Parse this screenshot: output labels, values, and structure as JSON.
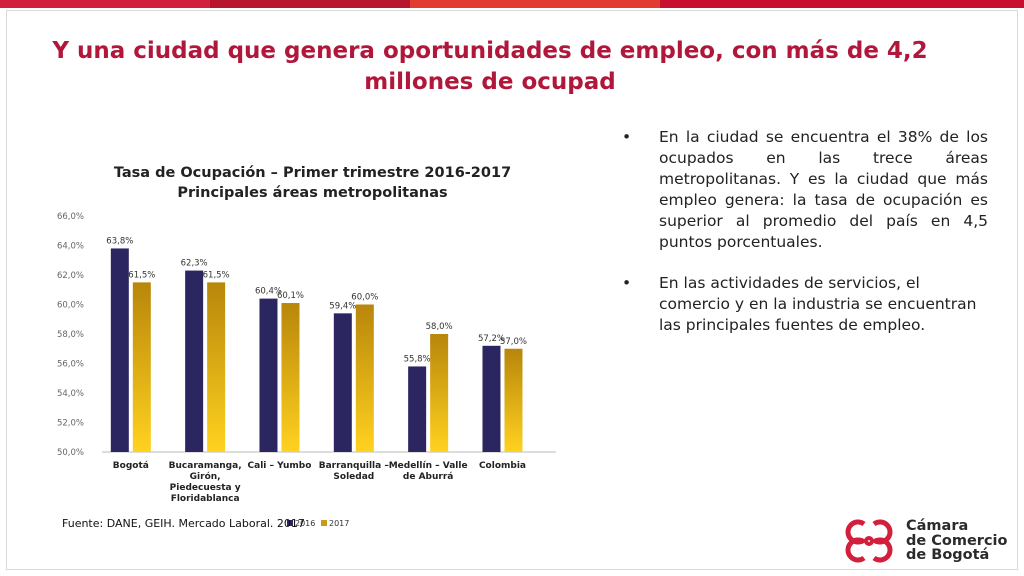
{
  "slide": {
    "title": "Y una ciudad que genera oportunidades de empleo, con más de 4,2 millones de ocupad",
    "title_color": "#b0173b",
    "bullets": [
      "En la ciudad se encuentra el 38% de los ocupados en las trece áreas metropolitanas. Y es la ciudad que más empleo genera: la tasa de ocupación es superior al promedio del país en 4,5 puntos porcentuales.",
      "En las actividades de servicios, el comercio y en la industria se encuentran las principales fuentes de empleo."
    ],
    "bullet_glyph": "•",
    "source": "Fuente: DANE, GEIH. Mercado Laboral. 2017",
    "logo": {
      "lines": [
        "Cámara",
        "de Comercio",
        "de Bogotá"
      ],
      "icon": "ccb-logo-icon",
      "color": "#d21f3c"
    },
    "accent_colors": [
      "#d21f3c",
      "#c0392b",
      "#e03c31",
      "#b0173b"
    ]
  },
  "chart_data": {
    "type": "bar",
    "title_lines": [
      "Tasa de Ocupación – Primer trimestre 2016-2017",
      "Principales áreas metropolitanas"
    ],
    "categories": [
      [
        "Bogotá"
      ],
      [
        "Bucaramanga,",
        "Girón,",
        "Piedecuesta y",
        "Floridablanca"
      ],
      [
        "Cali – Yumbo"
      ],
      [
        "Barranquilla –",
        "Soledad"
      ],
      [
        "Medellín – Valle",
        "de Aburrá"
      ],
      [
        "Colombia"
      ]
    ],
    "series": [
      {
        "name": "2016",
        "values": [
          63.8,
          62.3,
          60.4,
          59.4,
          55.8,
          57.2
        ],
        "labels": [
          "63,8%",
          "62,3%",
          "60,4%",
          "59,4%",
          "55,8%",
          "57,2%"
        ],
        "color": "#2b2560"
      },
      {
        "name": "2017",
        "values": [
          61.5,
          61.5,
          60.1,
          60.0,
          58.0,
          57.0
        ],
        "labels": [
          "61,5%",
          "61,5%",
          "60,1%",
          "60,0%",
          "58,0%",
          "57,0%"
        ],
        "color": "#c99a1a"
      }
    ],
    "ylim": [
      50,
      66
    ],
    "yticks": [
      50,
      52,
      54,
      56,
      58,
      60,
      62,
      64,
      66
    ],
    "ytick_labels": [
      "50,0%",
      "52,0%",
      "54,0%",
      "56,0%",
      "58,0%",
      "60,0%",
      "62,0%",
      "64,0%",
      "66,0%"
    ],
    "grid": false,
    "legend": "bottom-center"
  }
}
